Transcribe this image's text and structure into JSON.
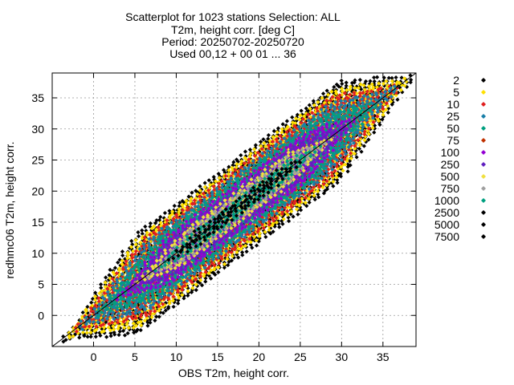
{
  "chart_data": {
    "type": "scatter",
    "title_lines": [
      "Scatterplot for 1023 stations Selection: ALL",
      "T2m, height corr. [deg C]",
      "Period: 20250702-20250720",
      "Used 00,12 + 00 01 ... 36"
    ],
    "xlabel": "OBS T2m, height corr.",
    "ylabel": "redhmc06 T2m, height corr.",
    "xlim": [
      -5,
      39
    ],
    "ylim": [
      -5,
      39
    ],
    "x_ticks": [
      0,
      5,
      10,
      15,
      20,
      25,
      30,
      35
    ],
    "y_ticks": [
      0,
      5,
      10,
      15,
      20,
      25,
      30,
      35
    ],
    "grid": true,
    "diagonal_line": true,
    "legend_placement": "right",
    "legend": [
      {
        "label": "2",
        "color": "#000000"
      },
      {
        "label": "5",
        "color": "#ffe000"
      },
      {
        "label": "10",
        "color": "#e02020"
      },
      {
        "label": "25",
        "color": "#1a7fa8"
      },
      {
        "label": "50",
        "color": "#00a080"
      },
      {
        "label": "75",
        "color": "#c03000"
      },
      {
        "label": "100",
        "color": "#9400d3"
      },
      {
        "label": "250",
        "color": "#6020c0"
      },
      {
        "label": "500",
        "color": "#f0e040"
      },
      {
        "label": "750",
        "color": "#a0a0a0"
      },
      {
        "label": "1000",
        "color": "#00a080"
      },
      {
        "label": "2500",
        "color": "#000000"
      },
      {
        "label": "5000",
        "color": "#000000"
      },
      {
        "label": "7500",
        "color": "#000000"
      }
    ],
    "density_bands": [
      {
        "color": "#000000",
        "halfwidth": 8.2,
        "x_range": [
          -3.5,
          38.5
        ]
      },
      {
        "color": "#ffe000",
        "halfwidth": 7.3,
        "x_range": [
          -3.0,
          38.0
        ]
      },
      {
        "color": "#e02020",
        "halfwidth": 6.5,
        "x_range": [
          -2.0,
          37.0
        ]
      },
      {
        "color": "#1a7fa8",
        "halfwidth": 5.6,
        "x_range": [
          -1.5,
          36.5
        ]
      },
      {
        "color": "#00a080",
        "halfwidth": 4.8,
        "x_range": [
          0.5,
          34.5
        ]
      },
      {
        "color": "#9400d3",
        "halfwidth": 4.0,
        "x_range": [
          3.0,
          32.0
        ]
      },
      {
        "color": "#6020c0",
        "halfwidth": 3.2,
        "x_range": [
          4.5,
          30.5
        ]
      },
      {
        "color": "#f0e040",
        "halfwidth": 2.5,
        "x_range": [
          5.5,
          29.0
        ]
      },
      {
        "color": "#a0a0a0",
        "halfwidth": 2.0,
        "x_range": [
          6.5,
          28.5
        ]
      },
      {
        "color": "#00a080",
        "halfwidth": 1.6,
        "x_range": [
          7.5,
          27.5
        ]
      },
      {
        "color": "#000000",
        "halfwidth": 1.2,
        "x_range": [
          9.0,
          25.5
        ]
      }
    ]
  }
}
